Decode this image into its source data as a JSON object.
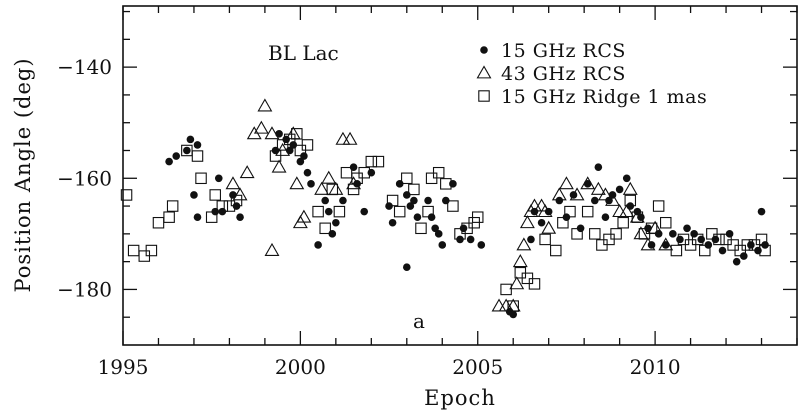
{
  "chart_data": {
    "type": "scatter",
    "title": "",
    "annotations": {
      "source": "BL Lac",
      "panel": "a"
    },
    "xlabel": "Epoch",
    "ylabel": "Position Angle  (deg)",
    "xlim": [
      1995,
      2014.0
    ],
    "ylim": [
      -190,
      -129
    ],
    "xticks": [
      1995,
      2000,
      2005,
      2010
    ],
    "yticks": [
      -180,
      -160,
      -140
    ],
    "xtick_labels": [
      "1995",
      "2000",
      "2005",
      "2010"
    ],
    "ytick_labels": [
      "−180",
      "−160",
      "−140"
    ],
    "grid": false,
    "legend_position": "top-right",
    "series": [
      {
        "name": "15 GHz RCS",
        "marker": "filled-circle",
        "points": [
          [
            1996.3,
            -157
          ],
          [
            1996.5,
            -156
          ],
          [
            1996.8,
            -155
          ],
          [
            1997.1,
            -154
          ],
          [
            1996.9,
            -153
          ],
          [
            1997.0,
            -163
          ],
          [
            1997.1,
            -167
          ],
          [
            1997.7,
            -160
          ],
          [
            1997.6,
            -166
          ],
          [
            1997.8,
            -166
          ],
          [
            1998.1,
            -163
          ],
          [
            1998.2,
            -165
          ],
          [
            1998.3,
            -167
          ],
          [
            1999.3,
            -155
          ],
          [
            1999.4,
            -152
          ],
          [
            1999.6,
            -153
          ],
          [
            1999.7,
            -155
          ],
          [
            1999.8,
            -154
          ],
          [
            2000.0,
            -157
          ],
          [
            2000.1,
            -156
          ],
          [
            2000.2,
            -159
          ],
          [
            2000.3,
            -161
          ],
          [
            2000.5,
            -172
          ],
          [
            2000.7,
            -164
          ],
          [
            2000.8,
            -166
          ],
          [
            2000.9,
            -170
          ],
          [
            2001.0,
            -168
          ],
          [
            2001.2,
            -164
          ],
          [
            2001.5,
            -158
          ],
          [
            2001.6,
            -161
          ],
          [
            2001.8,
            -166
          ],
          [
            2002.0,
            -159
          ],
          [
            2002.5,
            -165
          ],
          [
            2002.6,
            -168
          ],
          [
            2002.8,
            -161
          ],
          [
            2003.0,
            -163
          ],
          [
            2003.1,
            -165
          ],
          [
            2003.2,
            -164
          ],
          [
            2003.3,
            -167
          ],
          [
            2003.0,
            -176
          ],
          [
            2003.6,
            -164
          ],
          [
            2003.7,
            -167
          ],
          [
            2003.8,
            -169
          ],
          [
            2003.9,
            -170
          ],
          [
            2004.0,
            -172
          ],
          [
            2004.1,
            -164
          ],
          [
            2004.3,
            -161
          ],
          [
            2004.5,
            -171
          ],
          [
            2004.6,
            -169
          ],
          [
            2004.8,
            -171
          ],
          [
            2005.1,
            -172
          ],
          [
            2005.9,
            -184
          ],
          [
            2006.0,
            -184.5
          ],
          [
            2006.5,
            -171
          ],
          [
            2006.6,
            -166
          ],
          [
            2006.8,
            -168
          ],
          [
            2007.0,
            -166
          ],
          [
            2007.3,
            -164
          ],
          [
            2007.5,
            -167
          ],
          [
            2007.7,
            -163
          ],
          [
            2007.9,
            -169
          ],
          [
            2008.1,
            -161
          ],
          [
            2008.3,
            -164
          ],
          [
            2008.4,
            -158
          ],
          [
            2008.6,
            -167
          ],
          [
            2008.7,
            -164
          ],
          [
            2008.8,
            -163
          ],
          [
            2009.0,
            -162
          ],
          [
            2009.2,
            -160
          ],
          [
            2009.3,
            -165
          ],
          [
            2009.5,
            -166
          ],
          [
            2009.6,
            -167
          ],
          [
            2009.8,
            -169
          ],
          [
            2009.9,
            -172
          ],
          [
            2010.1,
            -170
          ],
          [
            2010.3,
            -172
          ],
          [
            2010.5,
            -170
          ],
          [
            2010.7,
            -171
          ],
          [
            2010.9,
            -169
          ],
          [
            2011.1,
            -170
          ],
          [
            2011.3,
            -171
          ],
          [
            2011.5,
            -172
          ],
          [
            2011.7,
            -171
          ],
          [
            2011.9,
            -173
          ],
          [
            2012.1,
            -170
          ],
          [
            2012.3,
            -175
          ],
          [
            2012.5,
            -174
          ],
          [
            2012.7,
            -172
          ],
          [
            2012.9,
            -173
          ],
          [
            2013.0,
            -166
          ],
          [
            2013.1,
            -172
          ]
        ]
      },
      {
        "name": "43 GHz RCS",
        "marker": "open-triangle",
        "points": [
          [
            1998.1,
            -161
          ],
          [
            1998.3,
            -163
          ],
          [
            1998.5,
            -159
          ],
          [
            1998.7,
            -152
          ],
          [
            1998.9,
            -151
          ],
          [
            1999.0,
            -147
          ],
          [
            1999.2,
            -152
          ],
          [
            1999.4,
            -158
          ],
          [
            1999.2,
            -173
          ],
          [
            1999.5,
            -155
          ],
          [
            1999.8,
            -152
          ],
          [
            1999.9,
            -161
          ],
          [
            2000.0,
            -168
          ],
          [
            2000.1,
            -167
          ],
          [
            2000.6,
            -162
          ],
          [
            2000.8,
            -160
          ],
          [
            2001.0,
            -162
          ],
          [
            2001.2,
            -153
          ],
          [
            2001.4,
            -153
          ],
          [
            2001.5,
            -161
          ],
          [
            2005.6,
            -183
          ],
          [
            2005.8,
            -183
          ],
          [
            2006.0,
            -183
          ],
          [
            2006.1,
            -179
          ],
          [
            2006.2,
            -175
          ],
          [
            2006.3,
            -172
          ],
          [
            2006.4,
            -168
          ],
          [
            2006.5,
            -166
          ],
          [
            2006.6,
            -165
          ],
          [
            2006.8,
            -165
          ],
          [
            2006.9,
            -166
          ],
          [
            2007.0,
            -169
          ],
          [
            2007.3,
            -163
          ],
          [
            2007.5,
            -161
          ],
          [
            2007.8,
            -163
          ],
          [
            2008.1,
            -161
          ],
          [
            2008.4,
            -162
          ],
          [
            2008.6,
            -163
          ],
          [
            2008.8,
            -164
          ],
          [
            2009.0,
            -166
          ],
          [
            2009.2,
            -166
          ],
          [
            2009.3,
            -162
          ],
          [
            2009.5,
            -167
          ],
          [
            2009.6,
            -170
          ],
          [
            2009.8,
            -172
          ],
          [
            2010.0,
            -169
          ],
          [
            2010.3,
            -172
          ]
        ]
      },
      {
        "name": "15 GHz Ridge 1 mas",
        "marker": "open-square",
        "points": [
          [
            1995.1,
            -163
          ],
          [
            1995.3,
            -173
          ],
          [
            1995.6,
            -174
          ],
          [
            1995.8,
            -173
          ],
          [
            1996.0,
            -168
          ],
          [
            1996.3,
            -167
          ],
          [
            1996.4,
            -165
          ],
          [
            1996.8,
            -155
          ],
          [
            1997.1,
            -156
          ],
          [
            1997.2,
            -160
          ],
          [
            1997.5,
            -167
          ],
          [
            1997.6,
            -163
          ],
          [
            1997.8,
            -165
          ],
          [
            1998.0,
            -165
          ],
          [
            1998.2,
            -164
          ],
          [
            1999.3,
            -156
          ],
          [
            1999.5,
            -154
          ],
          [
            1999.7,
            -153
          ],
          [
            1999.9,
            -152
          ],
          [
            2000.0,
            -155
          ],
          [
            2000.2,
            -154
          ],
          [
            2000.5,
            -166
          ],
          [
            2000.7,
            -169
          ],
          [
            2000.9,
            -162
          ],
          [
            2001.1,
            -166
          ],
          [
            2001.3,
            -159
          ],
          [
            2001.5,
            -162
          ],
          [
            2001.6,
            -160
          ],
          [
            2001.8,
            -159
          ],
          [
            2002.0,
            -157
          ],
          [
            2002.2,
            -157
          ],
          [
            2002.6,
            -164
          ],
          [
            2002.8,
            -166
          ],
          [
            2003.0,
            -160
          ],
          [
            2003.2,
            -162
          ],
          [
            2003.4,
            -169
          ],
          [
            2003.6,
            -166
          ],
          [
            2003.7,
            -160
          ],
          [
            2003.9,
            -159
          ],
          [
            2004.1,
            -161
          ],
          [
            2004.3,
            -165
          ],
          [
            2004.5,
            -170
          ],
          [
            2004.7,
            -169
          ],
          [
            2004.9,
            -168
          ],
          [
            2005.0,
            -167
          ],
          [
            2005.8,
            -180
          ],
          [
            2006.0,
            -183
          ],
          [
            2006.2,
            -177
          ],
          [
            2006.4,
            -178
          ],
          [
            2006.6,
            -179
          ],
          [
            2006.9,
            -171
          ],
          [
            2007.2,
            -173
          ],
          [
            2007.4,
            -168
          ],
          [
            2007.6,
            -166
          ],
          [
            2007.8,
            -170
          ],
          [
            2008.1,
            -166
          ],
          [
            2008.3,
            -170
          ],
          [
            2008.5,
            -172
          ],
          [
            2008.7,
            -171
          ],
          [
            2008.9,
            -170
          ],
          [
            2009.1,
            -168
          ],
          [
            2009.3,
            -164
          ],
          [
            2009.5,
            -167
          ],
          [
            2009.7,
            -170
          ],
          [
            2009.9,
            -169
          ],
          [
            2010.1,
            -165
          ],
          [
            2010.3,
            -168
          ],
          [
            2010.6,
            -173
          ],
          [
            2010.8,
            -171
          ],
          [
            2011.0,
            -172
          ],
          [
            2011.2,
            -171
          ],
          [
            2011.4,
            -173
          ],
          [
            2011.6,
            -170
          ],
          [
            2011.8,
            -171
          ],
          [
            2012.0,
            -171
          ],
          [
            2012.2,
            -172
          ],
          [
            2012.4,
            -173
          ],
          [
            2012.6,
            -172
          ],
          [
            2012.8,
            -172
          ],
          [
            2013.0,
            -171
          ],
          [
            2013.1,
            -173
          ]
        ]
      }
    ]
  }
}
